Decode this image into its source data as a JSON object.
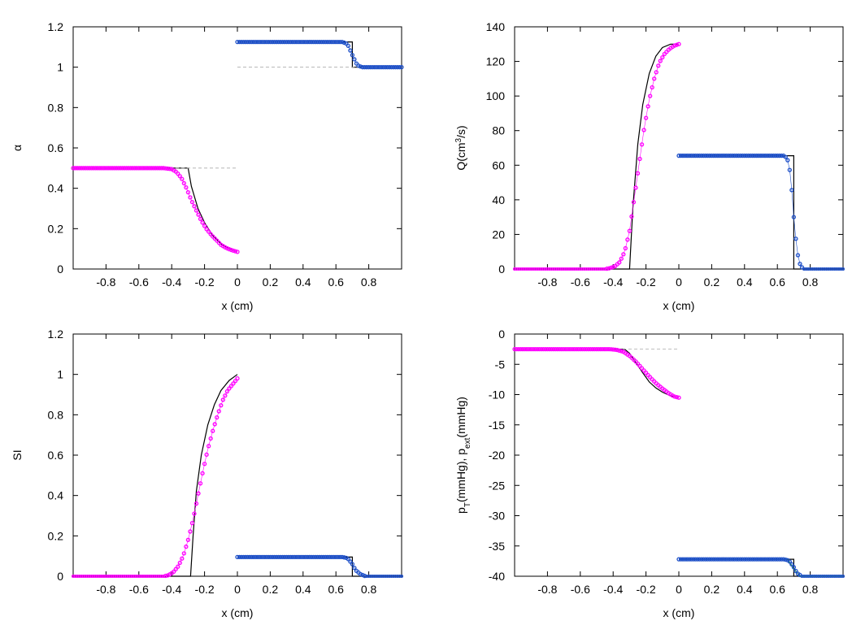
{
  "chart_data": [
    {
      "id": "alpha",
      "type": "line",
      "xlabel": "x (cm)",
      "ylabel": "α",
      "ylabel_parts": [
        {
          "t": "α"
        }
      ],
      "xlim": [
        -1,
        1
      ],
      "ylim": [
        0,
        1.2
      ],
      "xticks": [
        -0.8,
        -0.6,
        -0.4,
        -0.2,
        0,
        0.2,
        0.4,
        0.6,
        0.8
      ],
      "xtick_labels": [
        "-0.8",
        "-0.6",
        "-0.4",
        "-0.2",
        "0",
        "0.2",
        "0.4",
        "0.6",
        "0.8"
      ],
      "yticks": [
        0,
        0.2,
        0.4,
        0.6,
        0.8,
        1,
        1.2
      ],
      "ytick_labels": [
        "0",
        "0.2",
        "0.4",
        "0.6",
        "0.8",
        "1",
        "1.2"
      ],
      "series": [
        {
          "name": "exact-left",
          "color": "#000000",
          "style": "solid",
          "x": [
            -1,
            -0.3,
            -0.28,
            -0.24,
            -0.2,
            -0.15,
            -0.1,
            -0.05,
            0
          ],
          "y": [
            0.5,
            0.5,
            0.41,
            0.3,
            0.23,
            0.165,
            0.125,
            0.1,
            0.085
          ]
        },
        {
          "name": "exact-right",
          "color": "#000000",
          "style": "solid",
          "x": [
            0,
            0.7,
            0.7,
            1
          ],
          "y": [
            1.125,
            1.125,
            1.0,
            1.0
          ]
        },
        {
          "name": "reference-left",
          "color": "#aaaaaa",
          "style": "dashed",
          "x": [
            -1,
            0
          ],
          "y": [
            0.5,
            0.5
          ]
        },
        {
          "name": "reference-right",
          "color": "#aaaaaa",
          "style": "dashed",
          "x": [
            0,
            1
          ],
          "y": [
            1.0,
            1.0
          ]
        },
        {
          "name": "numerical-left",
          "color": "#ff00ff",
          "style": "markers",
          "x": [
            -1,
            -0.5,
            -0.45,
            -0.4,
            -0.37,
            -0.34,
            -0.31,
            -0.28,
            -0.25,
            -0.22,
            -0.19,
            -0.16,
            -0.13,
            -0.1,
            -0.07,
            -0.04,
            0
          ],
          "y": [
            0.5,
            0.5,
            0.5,
            0.495,
            0.48,
            0.45,
            0.4,
            0.34,
            0.29,
            0.24,
            0.2,
            0.17,
            0.145,
            0.12,
            0.105,
            0.095,
            0.085
          ]
        },
        {
          "name": "numerical-right",
          "color": "#1e50c8",
          "style": "markers",
          "x": [
            0,
            0.64,
            0.67,
            0.7,
            0.73,
            0.76,
            1
          ],
          "y": [
            1.125,
            1.125,
            1.115,
            1.06,
            1.01,
            1.0,
            1.0
          ]
        }
      ]
    },
    {
      "id": "flow",
      "type": "line",
      "xlabel": "x (cm)",
      "ylabel": "Q(cm3/s)",
      "ylabel_parts": [
        {
          "t": "Q(cm"
        },
        {
          "t": "3",
          "sup": true
        },
        {
          "t": "/s)"
        }
      ],
      "xlim": [
        -1,
        1
      ],
      "ylim": [
        0,
        140
      ],
      "xticks": [
        -0.8,
        -0.6,
        -0.4,
        -0.2,
        0,
        0.2,
        0.4,
        0.6,
        0.8
      ],
      "xtick_labels": [
        "-0.8",
        "-0.6",
        "-0.4",
        "-0.2",
        "0",
        "0.2",
        "0.4",
        "0.6",
        "0.8"
      ],
      "yticks": [
        0,
        20,
        40,
        60,
        80,
        100,
        120,
        140
      ],
      "ytick_labels": [
        "0",
        "20",
        "40",
        "60",
        "80",
        "100",
        "120",
        "140"
      ],
      "series": [
        {
          "name": "exact-left",
          "color": "#000000",
          "style": "solid",
          "x": [
            -1,
            -0.3,
            -0.28,
            -0.25,
            -0.22,
            -0.18,
            -0.14,
            -0.1,
            -0.05,
            0
          ],
          "y": [
            0,
            0,
            35,
            72,
            95,
            113,
            123,
            128,
            130,
            130
          ]
        },
        {
          "name": "exact-right",
          "color": "#000000",
          "style": "solid",
          "x": [
            0,
            0.7,
            0.7,
            1
          ],
          "y": [
            65.5,
            65.5,
            0,
            0
          ]
        },
        {
          "name": "numerical-left",
          "color": "#ff00ff",
          "style": "markers",
          "x": [
            -1,
            -0.45,
            -0.42,
            -0.39,
            -0.36,
            -0.33,
            -0.3,
            -0.27,
            -0.24,
            -0.21,
            -0.18,
            -0.15,
            -0.12,
            -0.09,
            -0.06,
            -0.03,
            0
          ],
          "y": [
            0,
            0,
            0.5,
            1.5,
            4,
            10,
            22,
            42,
            62,
            82,
            98,
            110,
            119,
            124,
            127,
            129,
            130
          ]
        },
        {
          "name": "numerical-right",
          "color": "#1e50c8",
          "style": "markers",
          "x": [
            0,
            0.64,
            0.66,
            0.68,
            0.7,
            0.72,
            0.74,
            0.76,
            1
          ],
          "y": [
            65.5,
            65.5,
            64,
            55,
            30,
            10,
            2,
            0,
            0
          ]
        }
      ]
    },
    {
      "id": "si",
      "type": "line",
      "xlabel": "x (cm)",
      "ylabel": "SI",
      "ylabel_parts": [
        {
          "t": "SI"
        }
      ],
      "xlim": [
        -1,
        1
      ],
      "ylim": [
        0,
        1.2
      ],
      "xticks": [
        -0.8,
        -0.6,
        -0.4,
        -0.2,
        0,
        0.2,
        0.4,
        0.6,
        0.8
      ],
      "xtick_labels": [
        "-0.8",
        "-0.6",
        "-0.4",
        "-0.2",
        "0",
        "0.2",
        "0.4",
        "0.6",
        "0.8"
      ],
      "yticks": [
        0,
        0.2,
        0.4,
        0.6,
        0.8,
        1,
        1.2
      ],
      "ytick_labels": [
        "0",
        "0.2",
        "0.4",
        "0.6",
        "0.8",
        "1",
        "1.2"
      ],
      "series": [
        {
          "name": "exact-left",
          "color": "#000000",
          "style": "solid",
          "x": [
            -1,
            -0.285,
            -0.27,
            -0.25,
            -0.22,
            -0.18,
            -0.14,
            -0.1,
            -0.05,
            0
          ],
          "y": [
            0,
            0,
            0.2,
            0.42,
            0.6,
            0.75,
            0.85,
            0.92,
            0.97,
            1.0
          ]
        },
        {
          "name": "exact-right",
          "color": "#000000",
          "style": "solid",
          "x": [
            0,
            0.7,
            0.7,
            1
          ],
          "y": [
            0.095,
            0.095,
            0,
            0
          ]
        },
        {
          "name": "numerical-left",
          "color": "#ff00ff",
          "style": "markers",
          "x": [
            -1,
            -0.45,
            -0.42,
            -0.39,
            -0.36,
            -0.33,
            -0.3,
            -0.27,
            -0.24,
            -0.21,
            -0.18,
            -0.15,
            -0.12,
            -0.09,
            -0.06,
            -0.03,
            0
          ],
          "y": [
            0,
            0,
            0.005,
            0.02,
            0.05,
            0.1,
            0.18,
            0.28,
            0.4,
            0.52,
            0.63,
            0.72,
            0.8,
            0.87,
            0.92,
            0.95,
            0.98
          ]
        },
        {
          "name": "numerical-right",
          "color": "#1e50c8",
          "style": "markers",
          "x": [
            0,
            0.64,
            0.67,
            0.7,
            0.72,
            0.75,
            0.78,
            1
          ],
          "y": [
            0.095,
            0.095,
            0.09,
            0.06,
            0.03,
            0.01,
            0,
            0
          ]
        }
      ]
    },
    {
      "id": "pressure",
      "type": "line",
      "xlabel": "x (cm)",
      "ylabel": "pT(mmHg), pext(mmHg)",
      "ylabel_parts": [
        {
          "t": "p"
        },
        {
          "t": "T",
          "sub": true
        },
        {
          "t": "(mmHg), p"
        },
        {
          "t": "ext",
          "sub": true
        },
        {
          "t": "(mmHg)"
        }
      ],
      "xlim": [
        -1,
        1
      ],
      "ylim": [
        -40,
        0
      ],
      "xticks": [
        -0.8,
        -0.6,
        -0.4,
        -0.2,
        0,
        0.2,
        0.4,
        0.6,
        0.8
      ],
      "xtick_labels": [
        "-0.8",
        "-0.6",
        "-0.4",
        "-0.2",
        "0",
        "0.2",
        "0.4",
        "0.6",
        "0.8"
      ],
      "yticks": [
        0,
        -5,
        -10,
        -15,
        -20,
        -25,
        -30,
        -35,
        -40
      ],
      "ytick_labels": [
        "0",
        "-5",
        "-10",
        "-15",
        "-20",
        "-25",
        "-30",
        "-35",
        "-40"
      ],
      "series": [
        {
          "name": "exact-left",
          "color": "#000000",
          "style": "solid",
          "x": [
            -1,
            -0.33,
            -0.3,
            -0.26,
            -0.22,
            -0.18,
            -0.14,
            -0.1,
            -0.05,
            0
          ],
          "y": [
            -2.5,
            -2.5,
            -3.2,
            -4.8,
            -6.4,
            -7.9,
            -8.9,
            -9.6,
            -10.2,
            -10.5
          ]
        },
        {
          "name": "exact-right",
          "color": "#000000",
          "style": "solid",
          "x": [
            0,
            0.7,
            0.7,
            1
          ],
          "y": [
            -37.2,
            -37.2,
            -40,
            -40
          ]
        },
        {
          "name": "reference-left",
          "color": "#aaaaaa",
          "style": "dashed",
          "x": [
            -1,
            0
          ],
          "y": [
            -2.5,
            -2.5
          ]
        },
        {
          "name": "numerical-right-green",
          "color": "#22aa22",
          "style": "solid",
          "x": [
            0,
            0.66,
            0.7,
            0.74,
            1
          ],
          "y": [
            -37.2,
            -37.2,
            -38.8,
            -40,
            -40
          ]
        },
        {
          "name": "numerical-left",
          "color": "#ff00ff",
          "style": "markers",
          "x": [
            -1,
            -0.42,
            -0.38,
            -0.34,
            -0.3,
            -0.26,
            -0.22,
            -0.18,
            -0.14,
            -0.1,
            -0.06,
            -0.03,
            0
          ],
          "y": [
            -2.5,
            -2.5,
            -2.6,
            -2.9,
            -3.6,
            -4.6,
            -5.8,
            -7.0,
            -8.1,
            -9.0,
            -9.8,
            -10.3,
            -10.5
          ]
        },
        {
          "name": "numerical-right",
          "color": "#1e50c8",
          "style": "markers",
          "x": [
            0,
            0.64,
            0.67,
            0.7,
            0.72,
            0.75,
            0.78,
            1
          ],
          "y": [
            -37.2,
            -37.2,
            -37.4,
            -38.5,
            -39.5,
            -40,
            -40,
            -40
          ]
        }
      ]
    }
  ]
}
